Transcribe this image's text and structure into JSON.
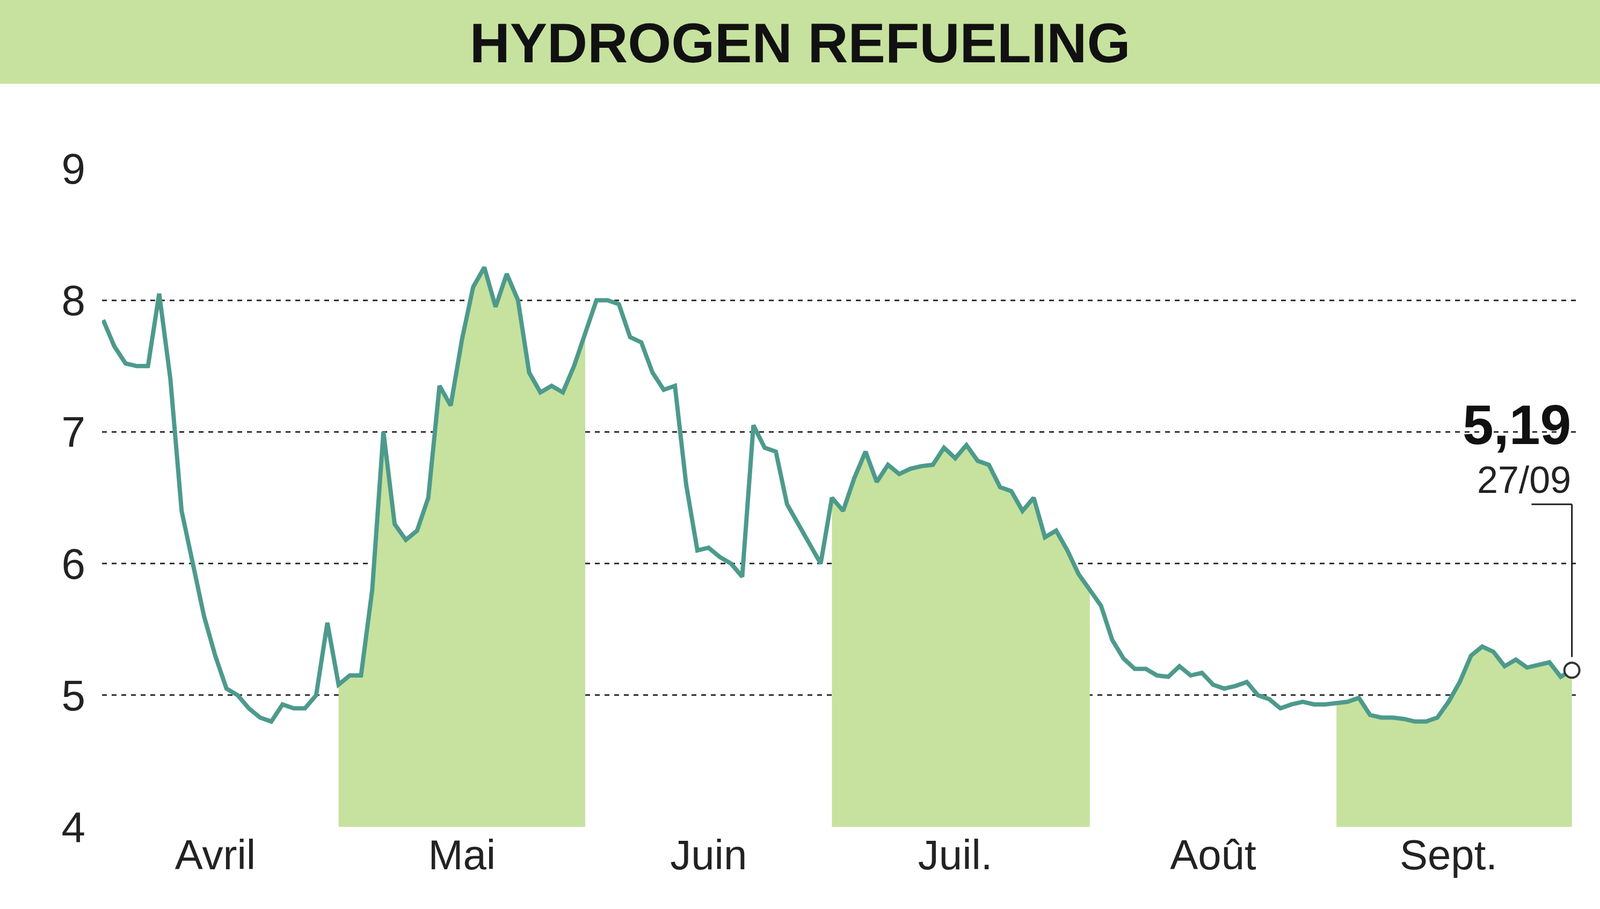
{
  "chart_data": {
    "type": "line",
    "title": "HYDROGEN REFUELING",
    "categories": [
      null,
      null,
      null,
      null,
      null,
      null,
      null,
      null,
      null,
      null,
      "Avril",
      null,
      null,
      null,
      null,
      null,
      null,
      null,
      null,
      null,
      null,
      null,
      null,
      null,
      null,
      null,
      null,
      null,
      null,
      null,
      null,
      null,
      "Mai",
      null,
      null,
      null,
      null,
      null,
      null,
      null,
      null,
      null,
      null,
      null,
      null,
      null,
      null,
      null,
      null,
      null,
      null,
      null,
      null,
      null,
      "Juin",
      null,
      null,
      null,
      null,
      null,
      null,
      null,
      null,
      null,
      null,
      null,
      null,
      null,
      null,
      null,
      null,
      null,
      null,
      null,
      null,
      null,
      "Juil.",
      null,
      null,
      null,
      null,
      null,
      null,
      null,
      null,
      null,
      null,
      null,
      null,
      null,
      null,
      null,
      null,
      null,
      null,
      null,
      null,
      null,
      null,
      "Août",
      null,
      null,
      null,
      null,
      null,
      null,
      null,
      null,
      null,
      null,
      null,
      null,
      null,
      null,
      null,
      null,
      null,
      null,
      null,
      null,
      "Sept.",
      null,
      null,
      null,
      null,
      null,
      null,
      null,
      null,
      null,
      null,
      null
    ],
    "values": [
      7.85,
      7.65,
      7.52,
      7.5,
      7.5,
      8.05,
      7.4,
      6.4,
      6.0,
      5.6,
      5.3,
      5.05,
      5.0,
      4.9,
      4.83,
      4.8,
      4.93,
      4.9,
      4.9,
      5.0,
      5.55,
      5.08,
      5.15,
      5.15,
      5.8,
      7.0,
      6.3,
      6.18,
      6.25,
      6.5,
      7.35,
      7.2,
      7.7,
      8.1,
      8.25,
      7.95,
      8.2,
      8.0,
      7.45,
      7.3,
      7.35,
      7.3,
      7.5,
      7.75,
      8.0,
      8.0,
      7.97,
      7.72,
      7.68,
      7.45,
      7.32,
      7.35,
      6.6,
      6.1,
      6.12,
      6.05,
      6.0,
      5.9,
      7.05,
      6.88,
      6.85,
      6.45,
      6.3,
      6.15,
      6.0,
      6.5,
      6.4,
      6.65,
      6.85,
      6.62,
      6.75,
      6.68,
      6.72,
      6.74,
      6.75,
      6.88,
      6.8,
      6.9,
      6.78,
      6.75,
      6.58,
      6.55,
      6.4,
      6.5,
      6.2,
      6.25,
      6.1,
      5.92,
      5.8,
      5.68,
      5.42,
      5.28,
      5.2,
      5.2,
      5.15,
      5.14,
      5.22,
      5.15,
      5.17,
      5.08,
      5.05,
      5.07,
      5.1,
      5.0,
      4.97,
      4.9,
      4.93,
      4.95,
      4.93,
      4.93,
      4.94,
      4.95,
      4.98,
      4.85,
      4.83,
      4.83,
      4.82,
      4.8,
      4.8,
      4.83,
      4.95,
      5.1,
      5.3,
      5.37,
      5.33,
      5.22,
      5.27,
      5.21,
      5.23,
      5.25,
      5.14,
      5.19
    ],
    "color": "#4d9a8c",
    "ylim": [
      4,
      9
    ],
    "yticks": [
      4,
      5,
      6,
      7,
      8,
      9
    ],
    "grid": true,
    "annotation": {
      "text": "5,19",
      "date": "27/09"
    }
  }
}
